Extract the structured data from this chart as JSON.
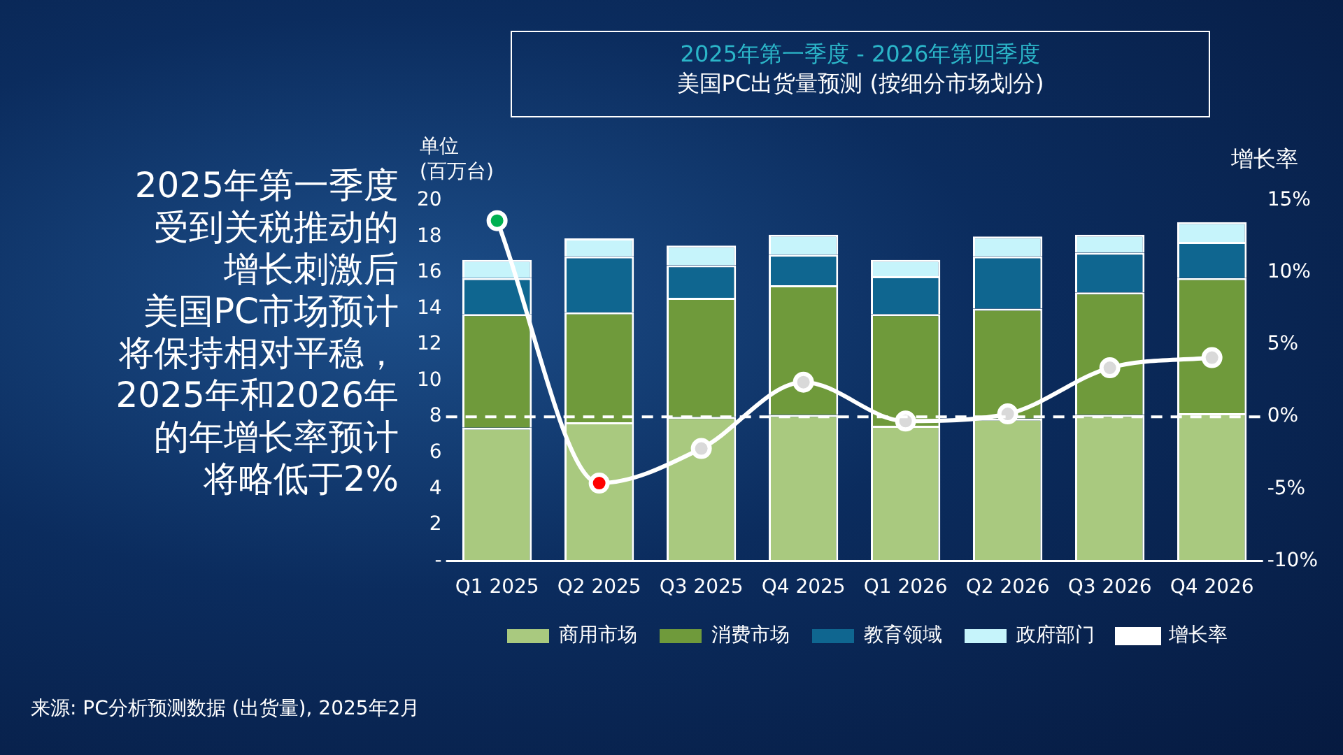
{
  "chart_data": {
    "type": "bar",
    "title": "2025年第一季度 - 2026年第四季度",
    "subtitle": "美国PC出货量预测 (按细分市场划分)",
    "ylabel": "单位\n(百万台)",
    "y2label": "增长率",
    "categories": [
      "Q1 2025",
      "Q2 2025",
      "Q3 2025",
      "Q4 2025",
      "Q1 2026",
      "Q2 2026",
      "Q3 2026",
      "Q4 2026"
    ],
    "stacked": true,
    "series": [
      {
        "name": "商用市场",
        "color": "#a9c97f",
        "values": [
          7.4,
          7.7,
          8.0,
          8.1,
          7.5,
          7.9,
          8.1,
          8.2
        ]
      },
      {
        "name": "消费市场",
        "color": "#6f9a3b",
        "values": [
          6.3,
          6.1,
          6.6,
          7.2,
          6.2,
          6.1,
          6.8,
          7.5
        ]
      },
      {
        "name": "教育领域",
        "color": "#0f6690",
        "values": [
          2.0,
          3.1,
          1.8,
          1.7,
          2.1,
          2.9,
          2.2,
          2.0
        ]
      },
      {
        "name": "政府部门",
        "color": "#c6f4fb",
        "values": [
          1.0,
          1.0,
          1.1,
          1.1,
          0.9,
          1.1,
          1.0,
          1.1
        ]
      },
      {
        "name": "增长率",
        "type": "line",
        "axis": "y2",
        "color": "#ffffff",
        "colors": [
          "#00b050",
          "#ff0000",
          "#d9d9d9",
          "#d9d9d9",
          "#d9d9d9",
          "#d9d9d9",
          "#d9d9d9",
          "#d9d9d9"
        ],
        "values": [
          13.6,
          -4.6,
          -2.2,
          2.4,
          -0.3,
          0.2,
          3.4,
          4.1
        ]
      }
    ],
    "ylim": [
      0,
      20
    ],
    "yticks": [
      {
        "value": 0,
        "label": "-"
      },
      2,
      4,
      6,
      8,
      10,
      12,
      14,
      16,
      18,
      20
    ],
    "y2lim": [
      -10,
      15
    ],
    "y2ticks": [
      {
        "value": -10,
        "label": "-10%"
      },
      {
        "value": -5,
        "label": "-5%"
      },
      {
        "value": 0,
        "label": "0%"
      },
      {
        "value": 5,
        "label": "5%"
      },
      {
        "value": 10,
        "label": "10%"
      },
      {
        "value": 15,
        "label": "15%"
      }
    ],
    "ref_lines": [
      {
        "axis": "y2",
        "value": 0,
        "color": "#ffffff",
        "line_style": "dashed"
      }
    ],
    "grid": false,
    "legend": "bottom",
    "marker": "circle",
    "annotations": [
      "2025年第一季度",
      "受到关税推动的",
      "增长刺激后",
      "美国PC市场预计",
      "将保持相对平稳，",
      "2025年和2026年",
      "的年增长率预计",
      "将略低于2%",
      "来源: PC分析预测数据 (出货量), 2025年2月"
    ]
  }
}
